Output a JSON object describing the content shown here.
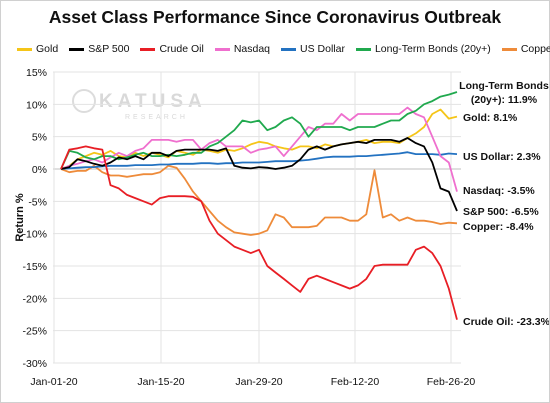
{
  "chart_data": {
    "type": "line",
    "title": "Asset Class Performance Since Coronavirus Outbreak",
    "ylabel": "Return %",
    "xlabel": "",
    "ylim": [
      -30,
      15
    ],
    "y_ticks": [
      "15%",
      "10%",
      "5%",
      "0%",
      "-5%",
      "-10%",
      "-15%",
      "-20%",
      "-25%",
      "-30%"
    ],
    "x_ticks": [
      "Jan-01-20",
      "Jan-15-20",
      "Jan-29-20",
      "Feb-12-20",
      "Feb-26-20"
    ],
    "grid": true,
    "legend_position": "top",
    "watermark": {
      "main": "KATUSA",
      "sub": "RESEARCH"
    },
    "series": [
      {
        "name": "Gold",
        "color": "#f5c518",
        "end_label": "Gold: 8.1%",
        "values": [
          0.0,
          0.5,
          1.5,
          2.0,
          2.5,
          2.2,
          2.8,
          2.0,
          1.8,
          2.5,
          2.0,
          2.5,
          2.2,
          1.8,
          2.8,
          2.5,
          2.2,
          3.0,
          2.8,
          2.5,
          3.0,
          2.8,
          3.2,
          3.8,
          4.2,
          4.0,
          3.5,
          3.2,
          3.0,
          3.5,
          3.5,
          3.2,
          3.8,
          3.5,
          3.8,
          4.0,
          4.2,
          4.5,
          4.0,
          4.2,
          4.2,
          4.0,
          4.8,
          5.5,
          6.5,
          8.5,
          9.2,
          7.8,
          8.1
        ]
      },
      {
        "name": "S&P 500",
        "color": "#000000",
        "end_label": "S&P 500: -6.5%",
        "values": [
          0.0,
          0.3,
          1.5,
          1.2,
          0.8,
          0.5,
          1.0,
          1.8,
          1.5,
          2.0,
          1.5,
          2.5,
          2.5,
          2.0,
          2.8,
          3.0,
          3.0,
          3.0,
          3.0,
          2.8,
          3.2,
          0.5,
          0.2,
          0.1,
          0.3,
          0.2,
          0.0,
          0.2,
          0.5,
          1.5,
          3.0,
          3.5,
          3.0,
          3.5,
          3.8,
          4.0,
          4.2,
          4.0,
          4.5,
          4.5,
          4.5,
          4.2,
          4.8,
          4.0,
          3.5,
          1.0,
          -3.0,
          -3.5,
          -6.5
        ]
      },
      {
        "name": "Crude Oil",
        "color": "#e81e25",
        "end_label": "Crude Oil: -23.3%",
        "values": [
          0.0,
          3.0,
          3.2,
          3.5,
          3.2,
          3.0,
          -2.5,
          -3.0,
          -4.0,
          -4.5,
          -5.0,
          -5.5,
          -4.5,
          -4.2,
          -4.2,
          -4.2,
          -4.3,
          -5.0,
          -8.0,
          -10.0,
          -11.0,
          -12.0,
          -12.5,
          -13.0,
          -12.5,
          -15.0,
          -16.0,
          -17.0,
          -18.0,
          -19.0,
          -17.0,
          -16.5,
          -17.0,
          -17.5,
          -18.0,
          -18.5,
          -18.0,
          -17.0,
          -15.0,
          -14.8,
          -14.8,
          -14.8,
          -14.8,
          -12.5,
          -12.0,
          -13.0,
          -15.0,
          -18.5,
          -23.3
        ]
      },
      {
        "name": "Nasdaq",
        "color": "#ef6fce",
        "end_label": "Nasdaq: -3.5%",
        "values": [
          0.0,
          0.5,
          0.8,
          1.2,
          1.5,
          1.0,
          1.8,
          2.5,
          2.0,
          2.8,
          3.2,
          4.5,
          4.5,
          4.5,
          4.2,
          4.5,
          4.5,
          3.0,
          4.0,
          4.5,
          3.5,
          3.5,
          3.5,
          2.5,
          3.0,
          3.2,
          3.5,
          2.0,
          3.5,
          5.0,
          6.5,
          6.0,
          7.0,
          7.0,
          8.5,
          7.5,
          8.5,
          8.5,
          8.5,
          8.5,
          8.5,
          8.5,
          9.5,
          8.5,
          8.0,
          5.0,
          2.0,
          1.0,
          -3.5
        ]
      },
      {
        "name": "US Dollar",
        "color": "#2372c1",
        "end_label": "US Dollar: 2.3%",
        "values": [
          0.0,
          0.1,
          0.2,
          0.3,
          0.3,
          0.4,
          0.5,
          0.5,
          0.5,
          0.6,
          0.6,
          0.6,
          0.7,
          0.7,
          0.8,
          0.8,
          0.8,
          0.9,
          0.9,
          0.8,
          0.9,
          0.9,
          1.0,
          1.0,
          1.0,
          1.1,
          1.2,
          1.2,
          1.2,
          1.3,
          1.4,
          1.6,
          1.8,
          1.9,
          1.9,
          1.9,
          2.0,
          2.0,
          2.1,
          2.2,
          2.3,
          2.4,
          2.6,
          2.3,
          2.3,
          2.3,
          2.2,
          2.4,
          2.3
        ]
      },
      {
        "name": "Long-Term Bonds (20y+)",
        "color": "#20a94e",
        "end_label": "Long-Term Bonds (20y+): 11.9%",
        "values": [
          0.0,
          2.8,
          2.5,
          1.8,
          1.5,
          2.0,
          2.0,
          1.5,
          1.8,
          2.2,
          2.5,
          2.0,
          2.0,
          2.2,
          2.0,
          2.2,
          2.5,
          2.5,
          3.5,
          4.0,
          5.0,
          6.0,
          7.5,
          7.2,
          7.5,
          6.0,
          6.5,
          7.5,
          8.0,
          7.0,
          5.0,
          6.5,
          6.5,
          6.5,
          6.5,
          6.0,
          6.5,
          6.5,
          6.5,
          7.0,
          7.5,
          7.5,
          8.5,
          9.0,
          10.0,
          10.5,
          11.2,
          11.5,
          11.9
        ]
      },
      {
        "name": "Copper",
        "color": "#ee8b3a",
        "end_label": "Copper: -8.4%",
        "values": [
          0.0,
          -0.5,
          -0.3,
          -0.3,
          0.5,
          -0.5,
          -1.0,
          -1.0,
          -1.2,
          -1.0,
          -0.8,
          -0.8,
          -0.5,
          0.5,
          0.2,
          -1.5,
          -3.5,
          -5.0,
          -6.5,
          -8.0,
          -9.0,
          -9.8,
          -10.0,
          -10.2,
          -10.0,
          -9.5,
          -7.0,
          -7.5,
          -9.0,
          -9.0,
          -9.0,
          -8.8,
          -7.5,
          -7.5,
          -7.5,
          -8.0,
          -8.0,
          -7.0,
          -0.2,
          -7.5,
          -7.0,
          -8.0,
          -7.5,
          -8.0,
          -8.0,
          -8.2,
          -8.5,
          -8.3,
          -8.4
        ]
      }
    ]
  }
}
